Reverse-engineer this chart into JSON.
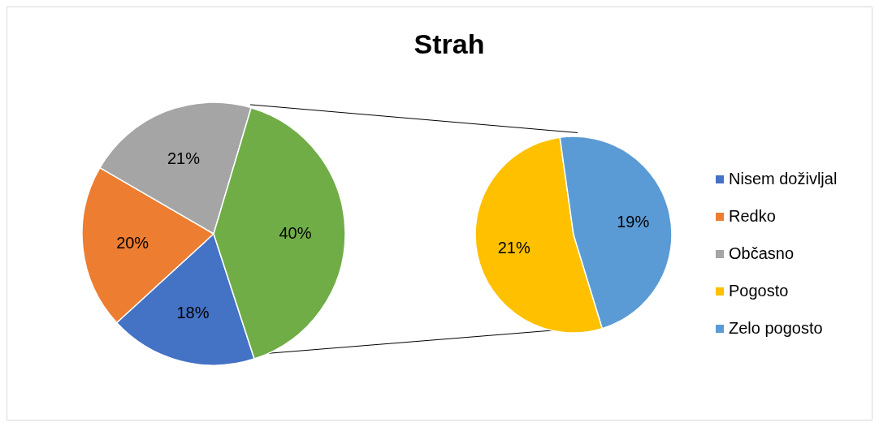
{
  "chart_data": [
    {
      "type": "pie",
      "title": "Strah",
      "categories": [
        "Nisem doživljal",
        "Redko",
        "Občasno",
        null
      ],
      "values": [
        18,
        20,
        21,
        40
      ],
      "colors": [
        "#4472c4",
        "#ed7d31",
        "#a5a5a5",
        "#70ad47"
      ],
      "value_labels": [
        "18%",
        "20%",
        "21%",
        "40%"
      ],
      "legend": "right"
    },
    {
      "type": "pie",
      "categories": [
        "Pogosto",
        "Zelo pogosto"
      ],
      "values": [
        21,
        19
      ],
      "colors": [
        "#ffc000",
        "#5b9bd5"
      ],
      "value_labels": [
        "21%",
        "19%"
      ],
      "legend": "right"
    }
  ]
}
